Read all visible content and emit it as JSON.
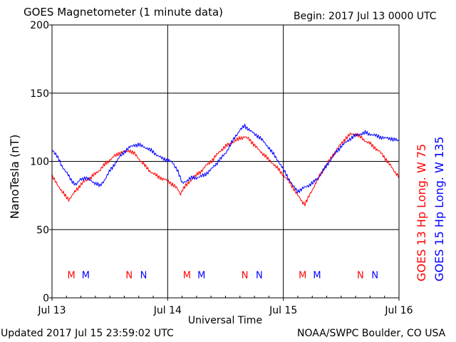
{
  "header": {
    "title": "GOES Magnetometer (1 minute data)",
    "begin": "Begin:  2017 Jul 13 0000 UTC"
  },
  "footer": {
    "updated": "Updated 2017 Jul 15 23:59:02 UTC",
    "credit": "NOAA/SWPC Boulder, CO USA"
  },
  "chart_data": {
    "type": "line",
    "ylabel": "NanoTesla (nT)",
    "xlabel": "Universal Time",
    "xlim": [
      "2017-07-13 00:00",
      "2017-07-16 00:00"
    ],
    "ylim": [
      0,
      200
    ],
    "y_ticks": [
      "0",
      "50",
      "100",
      "150",
      "200"
    ],
    "x_ticks": [
      "Jul 13",
      "Jul 14",
      "Jul 15",
      "Jul 16"
    ],
    "grid": true,
    "legend_placement": "right, vertical",
    "series": [
      {
        "name": "GOES 13 Hp  Long. W 75",
        "color": "#ff0000",
        "points": [
          [
            0.0,
            89
          ],
          [
            1.0,
            84
          ],
          [
            2.0,
            78
          ],
          [
            3.0,
            74
          ],
          [
            3.5,
            72
          ],
          [
            4.0,
            74
          ],
          [
            5.0,
            79
          ],
          [
            6.0,
            83
          ],
          [
            7.0,
            86
          ],
          [
            8.0,
            88
          ],
          [
            9.0,
            91
          ],
          [
            10.0,
            94
          ],
          [
            11.0,
            98
          ],
          [
            12.0,
            101
          ],
          [
            13.0,
            104
          ],
          [
            14.0,
            106
          ],
          [
            15.0,
            107
          ],
          [
            16.0,
            108
          ],
          [
            17.0,
            106
          ],
          [
            18.0,
            102
          ],
          [
            19.0,
            98
          ],
          [
            20.0,
            94
          ],
          [
            21.0,
            91
          ],
          [
            22.0,
            89
          ],
          [
            23.0,
            87
          ],
          [
            24.0,
            86
          ],
          [
            25.0,
            83
          ],
          [
            26.0,
            80
          ],
          [
            26.7,
            76
          ],
          [
            27.0,
            79
          ],
          [
            28.0,
            83
          ],
          [
            29.0,
            87
          ],
          [
            30.0,
            90
          ],
          [
            31.0,
            93
          ],
          [
            32.0,
            97
          ],
          [
            33.0,
            100
          ],
          [
            34.0,
            104
          ],
          [
            35.0,
            108
          ],
          [
            36.0,
            111
          ],
          [
            37.0,
            113
          ],
          [
            38.0,
            115
          ],
          [
            39.0,
            117
          ],
          [
            40.0,
            118
          ],
          [
            41.0,
            116
          ],
          [
            42.0,
            112
          ],
          [
            43.0,
            108
          ],
          [
            44.0,
            105
          ],
          [
            45.0,
            101
          ],
          [
            46.0,
            98
          ],
          [
            47.0,
            94
          ],
          [
            48.0,
            90
          ],
          [
            49.0,
            86
          ],
          [
            50.0,
            81
          ],
          [
            51.0,
            75
          ],
          [
            52.0,
            70
          ],
          [
            52.5,
            69
          ],
          [
            53.0,
            72
          ],
          [
            54.0,
            79
          ],
          [
            55.0,
            86
          ],
          [
            56.0,
            92
          ],
          [
            57.0,
            98
          ],
          [
            58.0,
            103
          ],
          [
            59.0,
            108
          ],
          [
            60.0,
            113
          ],
          [
            61.0,
            117
          ],
          [
            62.0,
            120
          ],
          [
            63.0,
            120
          ],
          [
            64.0,
            118
          ],
          [
            65.0,
            115
          ],
          [
            66.0,
            113
          ],
          [
            67.0,
            110
          ],
          [
            68.0,
            107
          ],
          [
            69.0,
            103
          ],
          [
            70.0,
            98
          ],
          [
            71.0,
            93
          ],
          [
            72.0,
            89
          ]
        ]
      },
      {
        "name": "GOES 15 Hp  Long. W 135",
        "color": "#0000ff",
        "points": [
          [
            0.0,
            109
          ],
          [
            1.0,
            104
          ],
          [
            2.0,
            97
          ],
          [
            3.0,
            92
          ],
          [
            4.0,
            86
          ],
          [
            5.0,
            83
          ],
          [
            6.0,
            87
          ],
          [
            7.0,
            88
          ],
          [
            8.0,
            86
          ],
          [
            9.0,
            84
          ],
          [
            10.0,
            82
          ],
          [
            11.0,
            87
          ],
          [
            12.0,
            93
          ],
          [
            13.0,
            98
          ],
          [
            14.0,
            103
          ],
          [
            15.0,
            107
          ],
          [
            16.0,
            110
          ],
          [
            17.0,
            112
          ],
          [
            18.0,
            112
          ],
          [
            19.0,
            111
          ],
          [
            20.0,
            109
          ],
          [
            21.0,
            107
          ],
          [
            22.0,
            104
          ],
          [
            23.0,
            102
          ],
          [
            24.0,
            101
          ],
          [
            25.0,
            99
          ],
          [
            26.0,
            94
          ],
          [
            27.0,
            84
          ],
          [
            28.0,
            86
          ],
          [
            29.0,
            88
          ],
          [
            30.0,
            88
          ],
          [
            31.0,
            89
          ],
          [
            32.0,
            91
          ],
          [
            33.0,
            94
          ],
          [
            34.0,
            98
          ],
          [
            35.0,
            102
          ],
          [
            36.0,
            106
          ],
          [
            37.0,
            112
          ],
          [
            38.0,
            118
          ],
          [
            39.0,
            123
          ],
          [
            40.0,
            126
          ],
          [
            41.0,
            123
          ],
          [
            42.0,
            120
          ],
          [
            43.0,
            118
          ],
          [
            44.0,
            114
          ],
          [
            45.0,
            110
          ],
          [
            46.0,
            105
          ],
          [
            47.0,
            100
          ],
          [
            48.0,
            94
          ],
          [
            49.0,
            88
          ],
          [
            50.0,
            82
          ],
          [
            51.0,
            78
          ],
          [
            52.0,
            80
          ],
          [
            53.0,
            82
          ],
          [
            54.0,
            84
          ],
          [
            55.0,
            87
          ],
          [
            56.0,
            92
          ],
          [
            57.0,
            97
          ],
          [
            58.0,
            102
          ],
          [
            59.0,
            107
          ],
          [
            60.0,
            111
          ],
          [
            61.0,
            114
          ],
          [
            62.0,
            117
          ],
          [
            63.0,
            119
          ],
          [
            64.0,
            120
          ],
          [
            65.0,
            121
          ],
          [
            66.0,
            120
          ],
          [
            67.0,
            119
          ],
          [
            68.0,
            118
          ],
          [
            69.0,
            117
          ],
          [
            70.0,
            117
          ],
          [
            71.0,
            116
          ],
          [
            72.0,
            115
          ]
        ]
      }
    ],
    "markers": [
      {
        "label": "M",
        "color": "#ff0000",
        "x": 4.0
      },
      {
        "label": "M",
        "color": "#0000ff",
        "x": 7.0
      },
      {
        "label": "N",
        "color": "#ff0000",
        "x": 16.0
      },
      {
        "label": "N",
        "color": "#0000ff",
        "x": 19.0
      },
      {
        "label": "M",
        "color": "#ff0000",
        "x": 28.0
      },
      {
        "label": "M",
        "color": "#0000ff",
        "x": 31.0
      },
      {
        "label": "N",
        "color": "#ff0000",
        "x": 40.0
      },
      {
        "label": "N",
        "color": "#0000ff",
        "x": 43.0
      },
      {
        "label": "M",
        "color": "#ff0000",
        "x": 52.0
      },
      {
        "label": "M",
        "color": "#0000ff",
        "x": 55.0
      },
      {
        "label": "N",
        "color": "#ff0000",
        "x": 64.0
      },
      {
        "label": "N",
        "color": "#0000ff",
        "x": 67.0
      }
    ],
    "marker_level": 17
  }
}
